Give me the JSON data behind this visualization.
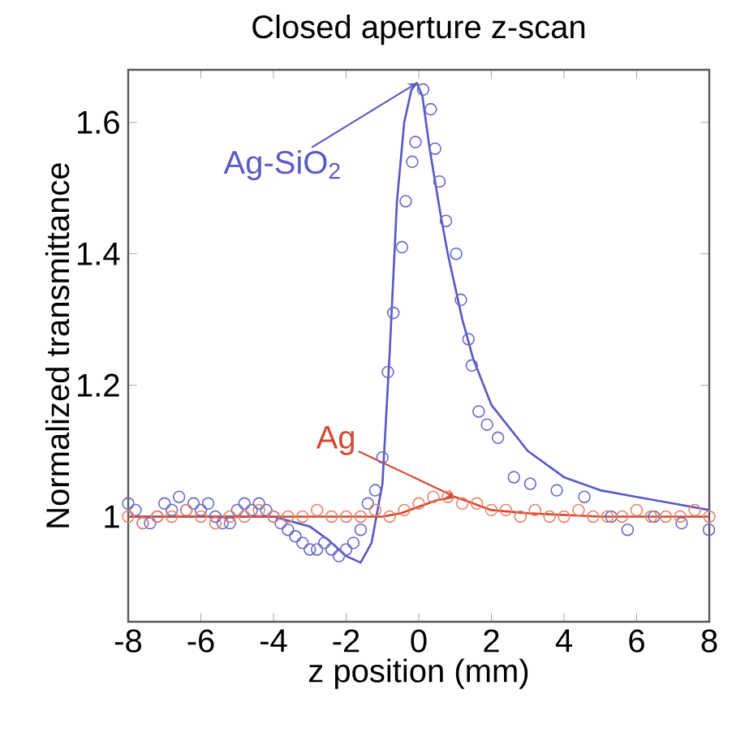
{
  "chart_data": {
    "type": "scatter",
    "title": "Closed aperture z-scan",
    "xlabel": "z position (mm)",
    "ylabel": "Normalized transmittance",
    "xlim": [
      -8,
      8
    ],
    "ylim": [
      0.84,
      1.68
    ],
    "xticks": [
      -8,
      -6,
      -4,
      -2,
      0,
      2,
      4,
      6,
      8
    ],
    "yticks": [
      1,
      1.2,
      1.4,
      1.6
    ],
    "series": [
      {
        "marker": "circle",
        "color": "#6a6ac8",
        "x": [
          -8,
          -7.8,
          -7.6,
          -7.4,
          -7.2,
          -7.0,
          -6.8,
          -6.6,
          -6.4,
          -6.2,
          -6.0,
          -5.8,
          -5.6,
          -5.4,
          -5.2,
          -5.0,
          -4.8,
          -4.6,
          -4.4,
          -4.2,
          -4.0,
          -3.8,
          -3.6,
          -3.4,
          -3.2,
          -3.0,
          -2.8,
          -2.6,
          -2.4,
          -2.2,
          -2.0,
          -1.8,
          -1.6,
          -1.4,
          -1.2,
          -1.0,
          -0.85,
          -0.7,
          -0.46,
          -0.36,
          -0.18,
          -0.09,
          0.12,
          0.33,
          0.45,
          0.57,
          0.75,
          1.03,
          1.16,
          1.37,
          1.46,
          1.65,
          1.88,
          2.18,
          2.62,
          3.07,
          3.8,
          4.56,
          5.3,
          5.75,
          6.48,
          7.24,
          7.99
        ],
        "values": [
          1.02,
          1.01,
          0.99,
          0.99,
          1.0,
          1.02,
          1.01,
          1.03,
          1.01,
          1.02,
          1.01,
          1.02,
          1.0,
          0.99,
          0.99,
          1.01,
          1.02,
          1.01,
          1.02,
          1.01,
          1.0,
          0.99,
          0.98,
          0.97,
          0.96,
          0.95,
          0.95,
          0.96,
          0.95,
          0.94,
          0.95,
          0.96,
          0.98,
          1.02,
          1.04,
          1.09,
          1.22,
          1.31,
          1.41,
          1.48,
          1.54,
          1.57,
          1.65,
          1.62,
          1.56,
          1.51,
          1.45,
          1.4,
          1.33,
          1.27,
          1.23,
          1.16,
          1.14,
          1.12,
          1.06,
          1.05,
          1.04,
          1.03,
          1.0,
          0.98,
          1.0,
          0.99,
          0.98
        ]
      },
      {
        "type": "line",
        "marker": "none",
        "name": "Ag-SiO$_{2}$",
        "color": "#5a5ac4",
        "x": [
          -8,
          -5,
          -4,
          -3,
          -2.5,
          -2,
          -1.6,
          -1.3,
          -1.0,
          -0.8,
          -0.6,
          -0.4,
          -0.2,
          -0.05,
          0.1,
          0.3,
          0.6,
          0.8,
          1.2,
          1.5,
          2,
          3,
          4,
          5,
          6,
          7,
          8
        ],
        "values": [
          1.0,
          1.0,
          1.0,
          0.985,
          0.965,
          0.94,
          0.93,
          0.96,
          1.05,
          1.25,
          1.48,
          1.6,
          1.65,
          1.66,
          1.64,
          1.56,
          1.46,
          1.4,
          1.3,
          1.24,
          1.17,
          1.1,
          1.06,
          1.04,
          1.03,
          1.02,
          1.01
        ]
      },
      {
        "marker": "circle",
        "color": "#e8846a",
        "x": [
          -8,
          -7.6,
          -7.2,
          -6.8,
          -6.4,
          -6.0,
          -5.6,
          -5.2,
          -4.8,
          -4.4,
          -4.0,
          -3.6,
          -3.2,
          -2.8,
          -2.4,
          -2.0,
          -1.6,
          -1.2,
          -0.8,
          -0.4,
          0,
          0.4,
          0.8,
          1.2,
          1.6,
          2.0,
          2.4,
          2.8,
          3.2,
          3.6,
          4.0,
          4.4,
          4.8,
          5.2,
          5.6,
          6.0,
          6.4,
          6.8,
          7.2,
          7.6,
          8
        ],
        "values": [
          1.0,
          0.99,
          1.0,
          1.0,
          1.01,
          1.0,
          0.99,
          1.0,
          1.0,
          1.01,
          1.0,
          1.0,
          1.0,
          1.01,
          1.0,
          1.0,
          1.0,
          1.01,
          1.0,
          1.01,
          1.02,
          1.03,
          1.03,
          1.02,
          1.02,
          1.01,
          1.01,
          1.0,
          1.01,
          1.0,
          1.0,
          1.01,
          1.0,
          1.0,
          1.0,
          1.01,
          1.0,
          1.0,
          1.0,
          1.01,
          1.0
        ]
      },
      {
        "type": "line",
        "marker": "none",
        "name": "Ag",
        "color": "#d24a32",
        "x": [
          -8,
          -2,
          -1,
          -0.5,
          0,
          0.5,
          1,
          1.5,
          2,
          3,
          5,
          8
        ],
        "values": [
          1.0,
          1.0,
          1.0,
          1.005,
          1.015,
          1.025,
          1.03,
          1.02,
          1.01,
          1.005,
          1.0,
          1.0
        ]
      }
    ]
  }
}
